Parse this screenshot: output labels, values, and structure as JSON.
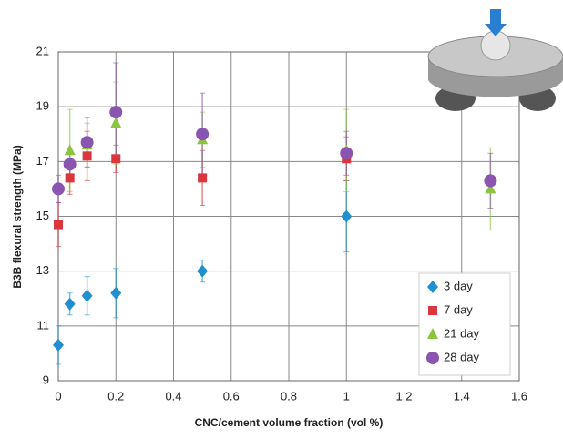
{
  "chart_data": {
    "type": "scatter",
    "ylabel": "B3B flexural strength (MPa)",
    "xlabel": "CNC/cement volume fraction (vol %)",
    "xlim": [
      0,
      1.6
    ],
    "xticks": [
      0,
      0.2,
      0.4,
      0.6,
      0.8,
      1,
      1.2,
      1.4,
      1.6
    ],
    "ylim": [
      9,
      21
    ],
    "yticks": [
      9,
      11,
      13,
      15,
      17,
      19,
      21
    ],
    "grid": true,
    "legend": "lower right",
    "series": [
      {
        "name": "3 day",
        "color": "#1f8fd0",
        "marker": "diamond",
        "x": [
          0,
          0.04,
          0.1,
          0.2,
          0.5,
          1
        ],
        "values": [
          10.3,
          11.8,
          12.1,
          12.2,
          13.0,
          15.0
        ],
        "errors": [
          0.7,
          0.4,
          0.7,
          0.9,
          0.4,
          1.3
        ]
      },
      {
        "name": "7 day",
        "color": "#d9363e",
        "marker": "square",
        "x": [
          0,
          0.04,
          0.1,
          0.2,
          0.5,
          1
        ],
        "values": [
          14.7,
          16.4,
          17.2,
          17.1,
          16.4,
          17.1
        ],
        "errors": [
          0.8,
          0.6,
          0.9,
          0.5,
          1.0,
          0.8
        ]
      },
      {
        "name": "21 day",
        "color": "#8cc43f",
        "marker": "triangle",
        "x": [
          0.04,
          0.1,
          0.2,
          0.5,
          1,
          1.5
        ],
        "values": [
          17.4,
          17.6,
          18.4,
          17.8,
          17.4,
          16.0
        ],
        "errors": [
          1.5,
          0.8,
          1.5,
          1.0,
          1.5,
          1.5
        ]
      },
      {
        "name": "28 day",
        "color": "#8a55b0",
        "marker": "circle",
        "x": [
          0,
          0.04,
          0.1,
          0.2,
          0.5,
          1,
          1.5
        ],
        "values": [
          16.0,
          16.9,
          17.7,
          18.8,
          18.0,
          17.3,
          16.3
        ],
        "errors": [
          0.5,
          0.6,
          0.9,
          1.8,
          1.5,
          0.8,
          1.0
        ]
      }
    ]
  }
}
